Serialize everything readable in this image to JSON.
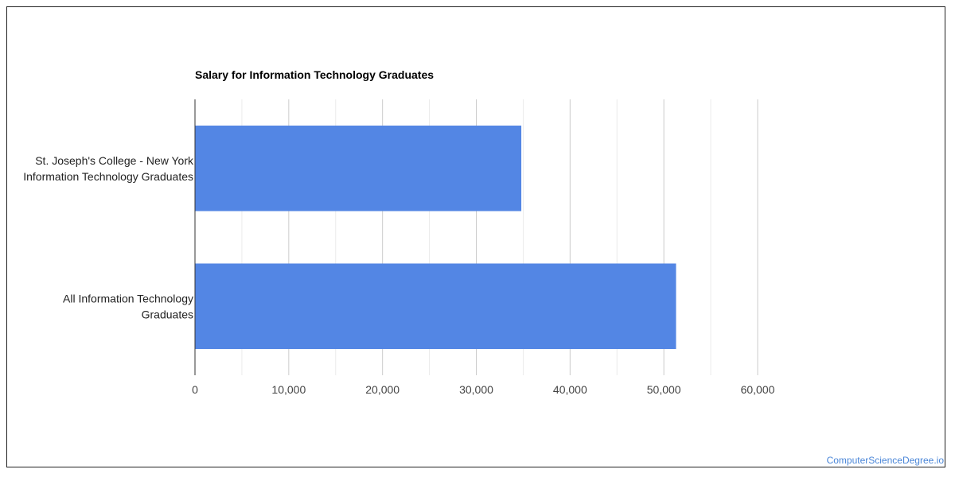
{
  "chart_data": {
    "type": "bar",
    "orientation": "horizontal",
    "title": "Salary for Information Technology Graduates",
    "categories": [
      [
        "St. Joseph's College - New York",
        "Information Technology Graduates"
      ],
      [
        "All Information Technology",
        "Graduates"
      ]
    ],
    "values": [
      34800,
      51300
    ],
    "xlim": [
      0,
      60000
    ],
    "xticks": [
      0,
      10000,
      20000,
      30000,
      40000,
      50000,
      60000
    ],
    "xtick_labels": [
      "0",
      "10,000",
      "20,000",
      "30,000",
      "40,000",
      "50,000",
      "60,000"
    ],
    "grid": true,
    "bar_color": "#5386e4"
  },
  "watermark": "ComputerScienceDegree.io"
}
